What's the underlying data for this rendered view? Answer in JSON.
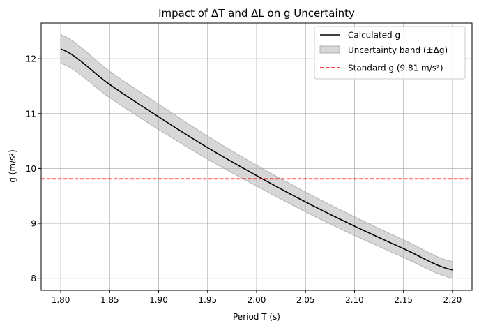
{
  "chart_data": {
    "type": "line",
    "title": "Impact of ΔT and ΔL on g Uncertainty",
    "xlabel": "Period T (s)",
    "ylabel": "g (m/s²)",
    "xlim": [
      1.78,
      2.22
    ],
    "ylim": [
      7.78,
      12.65
    ],
    "xticks": [
      1.8,
      1.85,
      1.9,
      1.95,
      2.0,
      2.05,
      2.1,
      2.15,
      2.2
    ],
    "xtick_labels": [
      "1.80",
      "1.85",
      "1.90",
      "1.95",
      "2.00",
      "2.05",
      "2.10",
      "2.15",
      "2.20"
    ],
    "yticks": [
      8,
      9,
      10,
      11,
      12
    ],
    "ytick_labels": [
      "8",
      "9",
      "10",
      "11",
      "12"
    ],
    "grid": true,
    "legend_position": "top-right",
    "series": [
      {
        "name": "Calculated g",
        "kind": "line",
        "color": "#000000",
        "x": [
          1.8,
          1.85,
          1.9,
          1.95,
          2.0,
          2.05,
          2.1,
          2.15,
          2.2
        ],
        "y": [
          12.18,
          11.53,
          10.94,
          10.38,
          9.87,
          9.39,
          8.95,
          8.54,
          8.15
        ]
      },
      {
        "name": "Uncertainty band (±Δg)",
        "kind": "band",
        "color": "#b0b0b0",
        "x": [
          1.8,
          1.85,
          1.9,
          1.95,
          2.0,
          2.05,
          2.1,
          2.15,
          2.2
        ],
        "lower": [
          11.92,
          11.29,
          10.71,
          10.17,
          9.68,
          9.21,
          8.78,
          8.38,
          8.0
        ],
        "upper": [
          12.44,
          11.77,
          11.17,
          10.59,
          10.06,
          9.57,
          9.12,
          8.7,
          8.3
        ]
      },
      {
        "name": "Standard g (9.81 m/s²)",
        "kind": "hline",
        "color": "#ff0000",
        "y": 9.81
      }
    ]
  }
}
